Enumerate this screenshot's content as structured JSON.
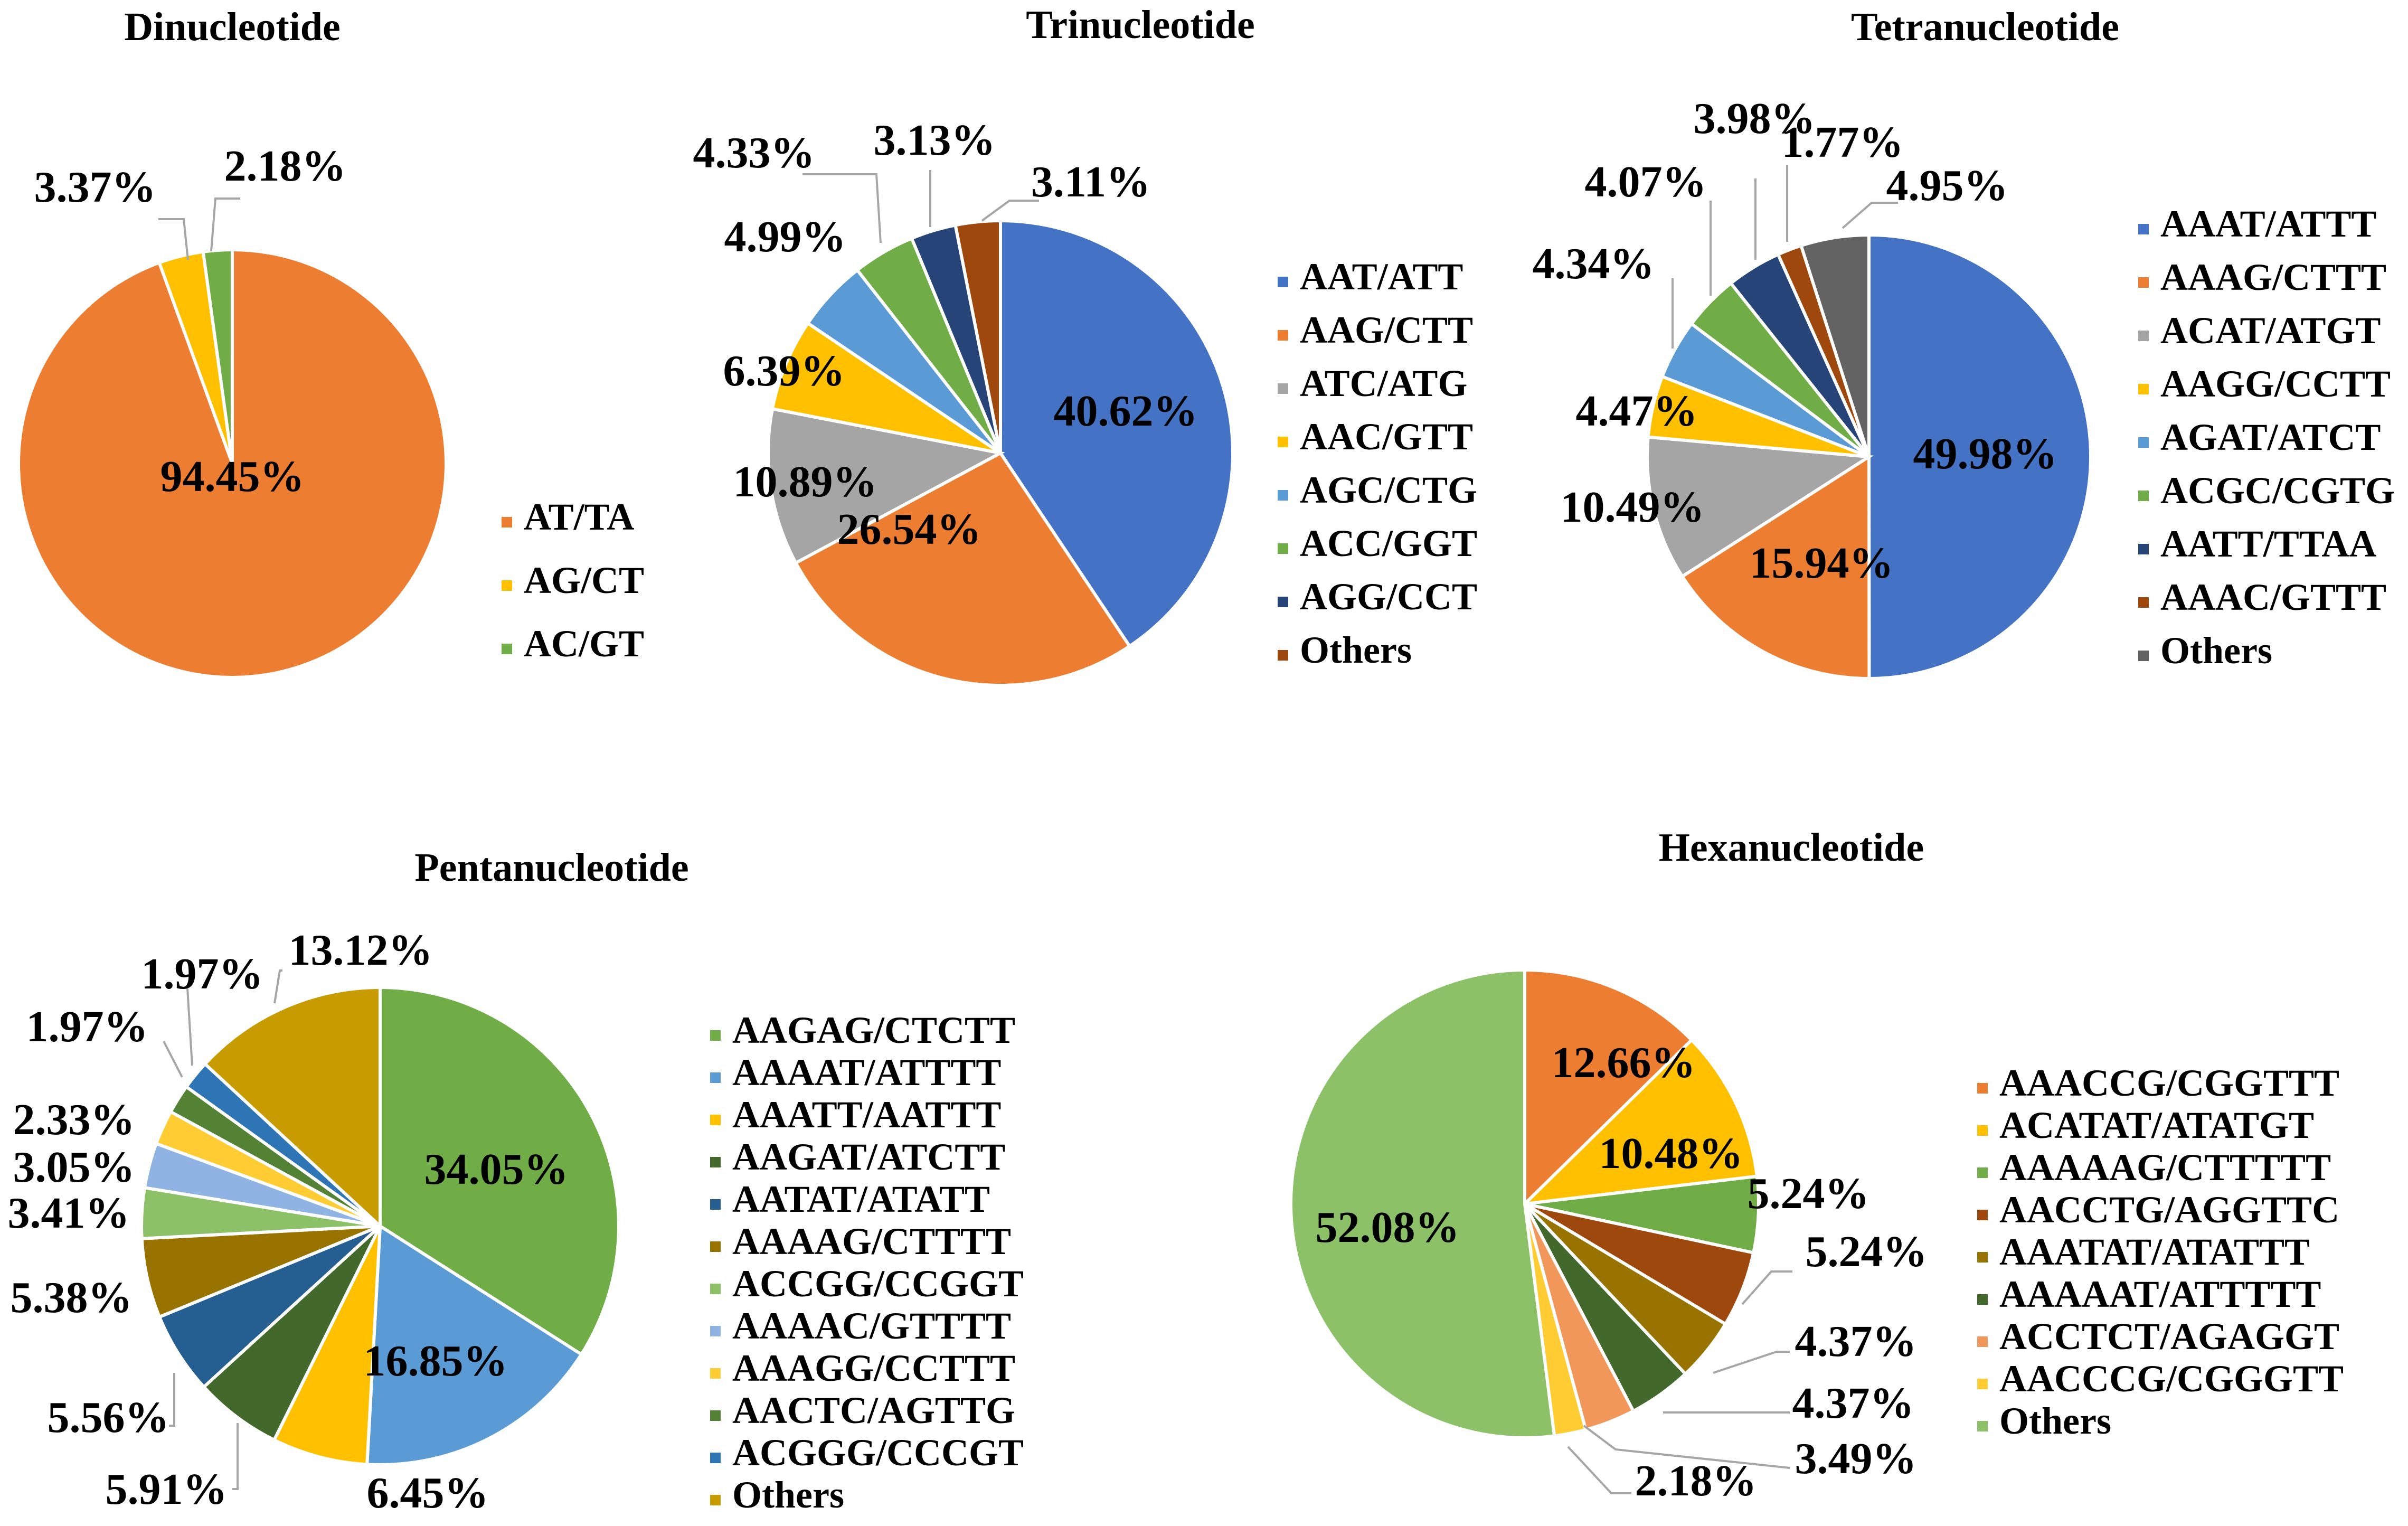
{
  "chart_data": [
    {
      "type": "pie",
      "title": "Dinucleotide",
      "slices": [
        {
          "name": "AT/TA",
          "value": 94.45,
          "label": "94.45%",
          "color": "#ED7D31"
        },
        {
          "name": "AG/CT",
          "value": 3.37,
          "label": "3.37%",
          "color": "#FFC000"
        },
        {
          "name": "AC/GT",
          "value": 2.18,
          "label": "2.18%",
          "color": "#70AD47"
        }
      ]
    },
    {
      "type": "pie",
      "title": "Trinucleotide",
      "slices": [
        {
          "name": "AAT/ATT",
          "value": 40.62,
          "label": "40.62%",
          "color": "#4472C4"
        },
        {
          "name": "AAG/CTT",
          "value": 26.54,
          "label": "26.54%",
          "color": "#ED7D31"
        },
        {
          "name": "ATC/ATG",
          "value": 10.89,
          "label": "10.89%",
          "color": "#A5A5A5"
        },
        {
          "name": "AAC/GTT",
          "value": 6.39,
          "label": "6.39%",
          "color": "#FFC000"
        },
        {
          "name": "AGC/CTG",
          "value": 4.99,
          "label": "4.99%",
          "color": "#5B9BD5"
        },
        {
          "name": "ACC/GGT",
          "value": 4.33,
          "label": "4.33%",
          "color": "#70AD47"
        },
        {
          "name": "AGG/CCT",
          "value": 3.13,
          "label": "3.13%",
          "color": "#264478"
        },
        {
          "name": "Others",
          "value": 3.11,
          "label": "3.11%",
          "color": "#9E480E"
        }
      ]
    },
    {
      "type": "pie",
      "title": "Tetranucleotide",
      "slices": [
        {
          "name": "AAAT/ATTT",
          "value": 49.98,
          "label": "49.98%",
          "color": "#4472C4"
        },
        {
          "name": "AAAG/CTTT",
          "value": 15.94,
          "label": "15.94%",
          "color": "#ED7D31"
        },
        {
          "name": "ACAT/ATGT",
          "value": 10.49,
          "label": "10.49%",
          "color": "#A5A5A5"
        },
        {
          "name": "AAGG/CCTT",
          "value": 4.47,
          "label": "4.47%",
          "color": "#FFC000"
        },
        {
          "name": "AGAT/ATCT",
          "value": 4.34,
          "label": "4.34%",
          "color": "#5B9BD5"
        },
        {
          "name": "ACGC/CGTG",
          "value": 4.07,
          "label": "4.07%",
          "color": "#70AD47"
        },
        {
          "name": "AATT/TTAA",
          "value": 3.98,
          "label": "3.98%",
          "color": "#264478"
        },
        {
          "name": "AAAC/GTTT",
          "value": 1.77,
          "label": "1.77%",
          "color": "#9E480E"
        },
        {
          "name": "Others",
          "value": 4.95,
          "label": "4.95%",
          "color": "#636363"
        }
      ]
    },
    {
      "type": "pie",
      "title": "Pentanucleotide",
      "slices": [
        {
          "name": "AAGAG/CTCTT",
          "value": 34.05,
          "label": "34.05%",
          "color": "#70AD47"
        },
        {
          "name": "AAAAT/ATTTT",
          "value": 16.85,
          "label": "16.85%",
          "color": "#5B9BD5"
        },
        {
          "name": "AAATT/AATTT",
          "value": 6.45,
          "label": "6.45%",
          "color": "#FFC000"
        },
        {
          "name": "AAGAT/ATCTT",
          "value": 5.91,
          "label": "5.91%",
          "color": "#43682B"
        },
        {
          "name": "AATAT/ATATT",
          "value": 5.56,
          "label": "5.56%",
          "color": "#255E91"
        },
        {
          "name": "AAAAG/CTTTT",
          "value": 5.38,
          "label": "5.38%",
          "color": "#997300"
        },
        {
          "name": "ACCGG/CCGGT",
          "value": 3.41,
          "label": "3.41%",
          "color": "#8CC168"
        },
        {
          "name": "AAAAC/GTTTT",
          "value": 3.05,
          "label": "3.05%",
          "color": "#8FB4E3"
        },
        {
          "name": "AAAGG/CCTTT",
          "value": 2.33,
          "label": "2.33%",
          "color": "#FFCD33"
        },
        {
          "name": "AACTC/AGTTG",
          "value": 1.97,
          "label": "1.97%",
          "color": "#548235"
        },
        {
          "name": "ACGGG/CCCGT",
          "value": 1.97,
          "label": "1.97%",
          "color": "#2E75B6"
        },
        {
          "name": "Others",
          "value": 13.12,
          "label": "13.12%",
          "color": "#C89B00"
        }
      ]
    },
    {
      "type": "pie",
      "title": "Hexanucleotide",
      "slices": [
        {
          "name": "AAACCG/CGGTTT",
          "value": 12.66,
          "label": "12.66%",
          "color": "#ED7D31"
        },
        {
          "name": "ACATAT/ATATGT",
          "value": 10.48,
          "label": "10.48%",
          "color": "#FFC000"
        },
        {
          "name": "AAAAAG/CTTTTT",
          "value": 5.24,
          "label": "5.24%",
          "color": "#70AD47"
        },
        {
          "name": "AACCTG/AGGTTC",
          "value": 5.24,
          "label": "5.24%",
          "color": "#9E480E"
        },
        {
          "name": "AAATAT/ATATTT",
          "value": 4.37,
          "label": "4.37%",
          "color": "#997300"
        },
        {
          "name": "AAAAAT/ATTTTT",
          "value": 4.37,
          "label": "4.37%",
          "color": "#43682B"
        },
        {
          "name": "ACCTCT/AGAGGT",
          "value": 3.49,
          "label": "3.49%",
          "color": "#F1975A"
        },
        {
          "name": "AACCCG/CGGGTT",
          "value": 2.18,
          "label": "2.18%",
          "color": "#FFCD33"
        },
        {
          "name": "Others",
          "value": 52.08,
          "label": "52.08%",
          "color": "#8CC168"
        }
      ]
    }
  ]
}
